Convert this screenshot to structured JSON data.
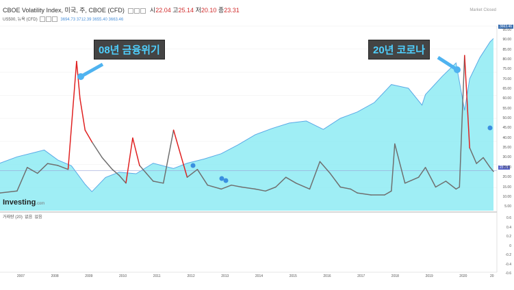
{
  "header": {
    "symbol_line": "CBOE Volatility Index, 미국, 주, CBOE (CFD)",
    "ohlc": [
      {
        "label": "시",
        "value": "22.04"
      },
      {
        "label": "고",
        "value": "25.14"
      },
      {
        "label": "저",
        "value": "20.10"
      },
      {
        "label": "종",
        "value": "23.31"
      }
    ],
    "overlay_symbol": "US500, 뉴욕 (CFD)",
    "overlay_values": [
      "3694.73",
      "3712.39",
      "3655.40",
      "3663.46"
    ],
    "market_status": "Market Closed"
  },
  "annotations": {
    "left": "08년 금융위기",
    "right": "20년 코로나"
  },
  "logo": {
    "brand": "Investing",
    "suffix": ".com"
  },
  "sub_indicator": {
    "label": "거래량 (20)",
    "values": [
      "없음",
      "없음"
    ]
  },
  "price_tags": {
    "spx": "3663.46",
    "vix": "23.31"
  },
  "colors": {
    "vix_line": "#6f6f6f",
    "vix_highlight": "#e02020",
    "spx_fill": "#7fe8f2",
    "spx_line": "#5aa9e6",
    "annotation_text": "#4fd0ff"
  },
  "chart_data": {
    "type": "line",
    "title": "CBOE Volatility Index",
    "xlabel": "",
    "ylabel": "",
    "x_ticks": [
      "2007",
      "2008",
      "2009",
      "2010",
      "2011",
      "2012",
      "2013",
      "2014",
      "2015",
      "2016",
      "2017",
      "2018",
      "2019",
      "2020",
      "20"
    ],
    "y_ticks": [
      "95.00",
      "90.00",
      "85.00",
      "80.00",
      "75.00",
      "70.00",
      "65.00",
      "60.00",
      "55.00",
      "50.00",
      "45.00",
      "40.00",
      "35.00",
      "30.00",
      "25.00",
      "20.00",
      "15.00",
      "10.00",
      "5.00"
    ],
    "ylim": [
      3,
      97
    ],
    "sub_y_ticks": [
      "0.6",
      "0.4",
      "0.2",
      "0",
      "-0.2",
      "-0.4",
      "-0.6"
    ],
    "series": [
      {
        "x": [
          2006.5,
          2007.0,
          2007.3,
          2007.6,
          2007.9,
          2008.2,
          2008.5,
          2008.75,
          2008.85,
          2009.0,
          2009.2,
          2009.5,
          2009.8,
          2010.0,
          2010.2,
          2010.4,
          2010.6,
          2010.8,
          2011.0,
          2011.3,
          2011.6,
          2011.8,
          2012.0,
          2012.3,
          2012.6,
          2013.0,
          2013.3,
          2013.6,
          2014.0,
          2014.3,
          2014.6,
          2014.9,
          2015.2,
          2015.6,
          2015.9,
          2016.2,
          2016.5,
          2016.8,
          2017.0,
          2017.4,
          2017.8,
          2018.0,
          2018.1,
          2018.4,
          2018.8,
          2019.0,
          2019.3,
          2019.6,
          2019.9,
          2020.0,
          2020.15,
          2020.3,
          2020.5,
          2020.7,
          2020.9,
          2021.0
        ],
        "y": [
          12,
          13,
          25,
          22,
          27,
          26,
          24,
          79,
          60,
          44,
          38,
          30,
          24,
          21,
          17,
          40,
          26,
          22,
          18,
          17,
          44,
          32,
          20,
          24,
          16,
          14,
          16,
          15,
          14,
          13,
          15,
          20,
          17,
          14,
          28,
          22,
          15,
          14,
          12,
          11,
          11,
          13,
          37,
          17,
          20,
          25,
          15,
          18,
          14,
          15,
          82,
          35,
          27,
          30,
          25,
          23
        ]
      },
      {
        "x": [
          2006.5,
          2007.0,
          2007.5,
          2007.8,
          2008.2,
          2008.6,
          2009.0,
          2009.2,
          2009.6,
          2010.0,
          2010.5,
          2011.0,
          2011.6,
          2012.0,
          2012.5,
          2013.0,
          2013.5,
          2014.0,
          2014.5,
          2015.0,
          2015.5,
          2016.0,
          2016.5,
          2017.0,
          2017.5,
          2018.0,
          2018.5,
          2018.9,
          2019.0,
          2019.5,
          2019.9,
          2020.15,
          2020.3,
          2020.6,
          2020.9,
          2021.0
        ],
        "y": [
          1300,
          1420,
          1500,
          1550,
          1360,
          1250,
          900,
          760,
          1030,
          1130,
          1100,
          1300,
          1200,
          1300,
          1380,
          1480,
          1650,
          1840,
          1960,
          2060,
          2100,
          1940,
          2150,
          2270,
          2450,
          2790,
          2720,
          2400,
          2600,
          2950,
          3200,
          2300,
          2900,
          3300,
          3600,
          3663
        ]
      }
    ]
  }
}
